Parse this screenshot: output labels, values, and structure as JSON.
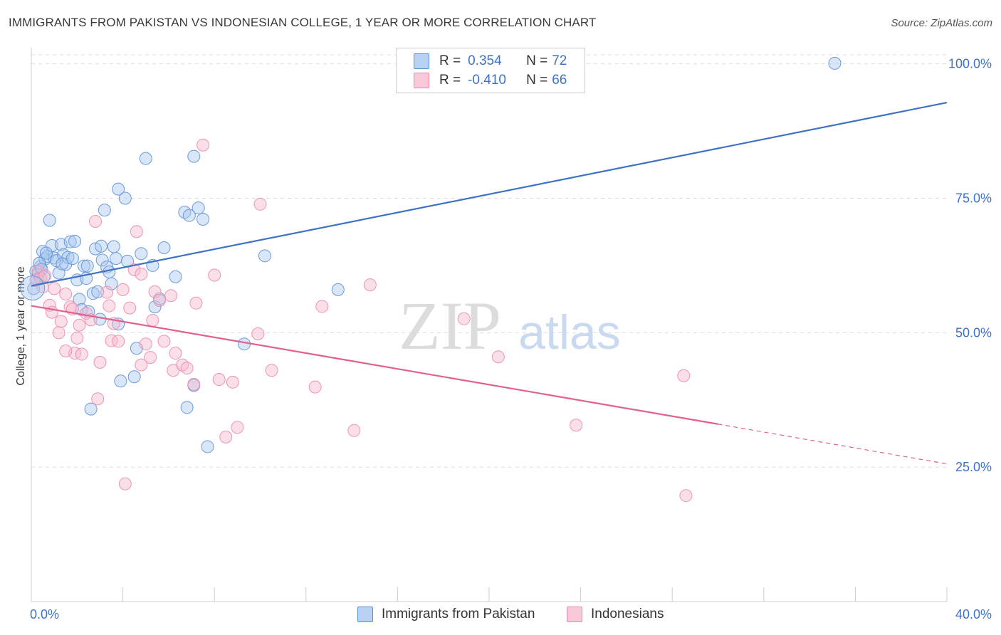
{
  "title": "IMMIGRANTS FROM PAKISTAN VS INDONESIAN COLLEGE, 1 YEAR OR MORE CORRELATION CHART",
  "source": "Source: ZipAtlas.com",
  "watermark": {
    "zip": "ZIP",
    "atlas": "atlas"
  },
  "colors": {
    "blue": "#3d72c4",
    "blue_fill": "#a9c8f0",
    "pink": "#e0608f",
    "pink_fill": "#f7b8cd",
    "axis_text": "#3d72c4",
    "grid": "#dddddd"
  },
  "legend_top": {
    "rows": [
      {
        "r_label": "R =",
        "r_value": "0.354",
        "n_label": "N =",
        "n_value": "72"
      },
      {
        "r_label": "R =",
        "r_value": "-0.410",
        "n_label": "N =",
        "n_value": "66"
      }
    ]
  },
  "legend_bottom": {
    "items": [
      "Immigrants from Pakistan",
      "Indonesians"
    ]
  },
  "chart_data": {
    "type": "scatter",
    "title": "IMMIGRANTS FROM PAKISTAN VS INDONESIAN COLLEGE, 1 YEAR OR MORE CORRELATION CHART",
    "xlabel": "",
    "ylabel": "College, 1 year or more",
    "xlim": [
      0,
      40
    ],
    "ylim": [
      0,
      103
    ],
    "x_tick_labels": [
      "0.0%",
      "40.0%"
    ],
    "y_tick_labels": [
      "25.0%",
      "50.0%",
      "75.0%",
      "100.0%"
    ],
    "y_ticks": [
      25,
      50,
      75,
      100
    ],
    "grid": true,
    "legend_position": "bottom",
    "series": [
      {
        "name": "Immigrants from Pakistan",
        "color": "#3d72c4",
        "R": 0.354,
        "N": 72,
        "trend": {
          "x": [
            0,
            40
          ],
          "y": [
            58.7,
            92.8
          ]
        },
        "points": [
          [
            0.1,
            58.2
          ],
          [
            0.2,
            61.4
          ],
          [
            0.3,
            60.9
          ],
          [
            0.4,
            62.3
          ],
          [
            0.5,
            65.1
          ],
          [
            0.6,
            63.7
          ],
          [
            0.7,
            64.2
          ],
          [
            0.8,
            70.9
          ],
          [
            0.9,
            66.2
          ],
          [
            1.0,
            63.9
          ],
          [
            1.1,
            63.4
          ],
          [
            1.2,
            61.1
          ],
          [
            1.3,
            66.4
          ],
          [
            1.4,
            64.5
          ],
          [
            1.5,
            62.7
          ],
          [
            1.6,
            64.0
          ],
          [
            1.7,
            66.9
          ],
          [
            1.8,
            63.8
          ],
          [
            1.9,
            67.0
          ],
          [
            2.0,
            59.8
          ],
          [
            2.1,
            56.2
          ],
          [
            2.2,
            54.3
          ],
          [
            2.3,
            62.4
          ],
          [
            2.4,
            60.1
          ],
          [
            2.5,
            53.9
          ],
          [
            2.6,
            35.8
          ],
          [
            2.7,
            57.3
          ],
          [
            2.8,
            65.6
          ],
          [
            2.9,
            57.6
          ],
          [
            3.0,
            52.5
          ],
          [
            3.1,
            63.5
          ],
          [
            3.2,
            72.8
          ],
          [
            3.3,
            62.2
          ],
          [
            3.4,
            61.3
          ],
          [
            3.5,
            59.1
          ],
          [
            3.6,
            66.0
          ],
          [
            3.7,
            63.8
          ],
          [
            3.8,
            51.6
          ],
          [
            3.8,
            76.7
          ],
          [
            3.9,
            41.0
          ],
          [
            4.1,
            75.0
          ],
          [
            4.2,
            63.3
          ],
          [
            4.5,
            41.8
          ],
          [
            4.6,
            47.1
          ],
          [
            4.8,
            64.7
          ],
          [
            5.0,
            82.4
          ],
          [
            5.3,
            62.5
          ],
          [
            5.4,
            54.8
          ],
          [
            5.6,
            56.3
          ],
          [
            5.8,
            65.8
          ],
          [
            6.3,
            60.4
          ],
          [
            6.8,
            36.1
          ],
          [
            6.7,
            72.4
          ],
          [
            6.9,
            71.8
          ],
          [
            7.1,
            40.2
          ],
          [
            7.1,
            82.8
          ],
          [
            7.3,
            73.2
          ],
          [
            7.5,
            71.1
          ],
          [
            7.7,
            28.8
          ],
          [
            9.3,
            47.9
          ],
          [
            10.2,
            64.3
          ],
          [
            13.4,
            58.0
          ],
          [
            16.5,
            96.7
          ],
          [
            35.1,
            100.1
          ],
          [
            0.25,
            59.9
          ],
          [
            0.35,
            62.9
          ],
          [
            0.45,
            61.8
          ],
          [
            0.55,
            60.4
          ],
          [
            0.65,
            64.8
          ],
          [
            1.35,
            62.8
          ],
          [
            2.45,
            62.4
          ],
          [
            3.05,
            66.1
          ]
        ]
      },
      {
        "name": "Indonesians",
        "color": "#e0608f",
        "R": -0.41,
        "N": 66,
        "trend": {
          "x": [
            0,
            30
          ],
          "y": [
            55.0,
            33.0
          ]
        },
        "trend_dashed": {
          "x": [
            30,
            40
          ],
          "y": [
            33.0,
            25.6
          ]
        },
        "points": [
          [
            0.2,
            59.7
          ],
          [
            0.3,
            61.4
          ],
          [
            0.4,
            60.1
          ],
          [
            0.5,
            58.5
          ],
          [
            0.6,
            60.6
          ],
          [
            0.8,
            55.1
          ],
          [
            0.9,
            53.8
          ],
          [
            1.0,
            58.2
          ],
          [
            1.2,
            50.0
          ],
          [
            1.3,
            52.1
          ],
          [
            1.5,
            57.2
          ],
          [
            1.7,
            54.8
          ],
          [
            1.8,
            54.4
          ],
          [
            1.9,
            46.2
          ],
          [
            2.0,
            49.0
          ],
          [
            2.1,
            51.4
          ],
          [
            2.2,
            46.0
          ],
          [
            2.4,
            53.6
          ],
          [
            2.6,
            52.4
          ],
          [
            2.8,
            70.7
          ],
          [
            2.9,
            37.7
          ],
          [
            3.0,
            44.5
          ],
          [
            3.3,
            57.5
          ],
          [
            3.4,
            55.0
          ],
          [
            3.5,
            48.5
          ],
          [
            3.6,
            51.7
          ],
          [
            3.8,
            48.4
          ],
          [
            4.0,
            58.0
          ],
          [
            4.1,
            21.9
          ],
          [
            4.3,
            54.6
          ],
          [
            4.5,
            61.7
          ],
          [
            4.6,
            68.8
          ],
          [
            4.8,
            60.9
          ],
          [
            5.0,
            47.9
          ],
          [
            5.2,
            45.4
          ],
          [
            5.3,
            52.3
          ],
          [
            5.4,
            57.6
          ],
          [
            5.6,
            56.0
          ],
          [
            5.8,
            48.4
          ],
          [
            6.1,
            56.9
          ],
          [
            6.2,
            43.0
          ],
          [
            6.3,
            46.2
          ],
          [
            6.6,
            44.0
          ],
          [
            6.8,
            43.4
          ],
          [
            7.1,
            40.4
          ],
          [
            7.2,
            55.5
          ],
          [
            7.5,
            84.9
          ],
          [
            8.0,
            60.7
          ],
          [
            8.2,
            41.3
          ],
          [
            8.5,
            30.6
          ],
          [
            8.8,
            40.8
          ],
          [
            9.0,
            32.4
          ],
          [
            10.0,
            73.9
          ],
          [
            9.9,
            49.8
          ],
          [
            10.5,
            43.0
          ],
          [
            12.4,
            39.9
          ],
          [
            12.7,
            54.9
          ],
          [
            14.1,
            31.8
          ],
          [
            14.8,
            58.9
          ],
          [
            18.9,
            52.6
          ],
          [
            20.4,
            45.5
          ],
          [
            23.8,
            32.8
          ],
          [
            28.5,
            42.0
          ],
          [
            28.6,
            19.7
          ],
          [
            1.5,
            46.6
          ],
          [
            4.8,
            44.0
          ]
        ]
      }
    ]
  }
}
